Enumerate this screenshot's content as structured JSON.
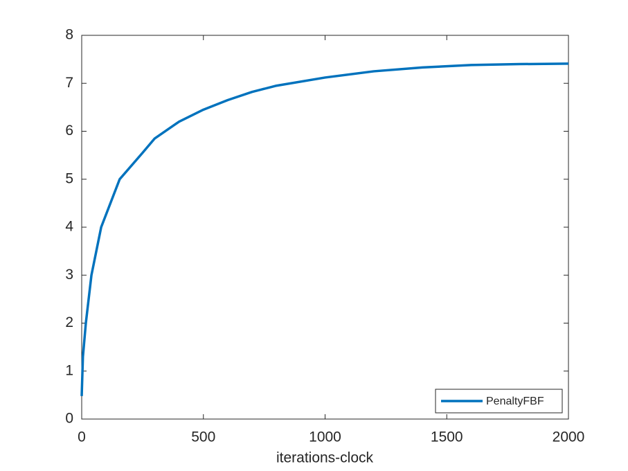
{
  "chart_data": {
    "type": "line",
    "x_label": "iterations-clock",
    "x": [
      0,
      5,
      17,
      40,
      80,
      156,
      250,
      300,
      400,
      500,
      600,
      700,
      800,
      1000,
      1200,
      1400,
      1600,
      1800,
      2000
    ],
    "series": [
      {
        "name": "PenaltyFBF",
        "color": "#0072bd",
        "values": [
          0.48,
          1.3,
          2,
          3,
          4,
          5,
          5.55,
          5.85,
          6.2,
          6.45,
          6.65,
          6.82,
          6.95,
          7.12,
          7.25,
          7.33,
          7.38,
          7.4,
          7.41
        ]
      }
    ],
    "xlim": [
      0,
      2000
    ],
    "xticks": [
      0,
      500,
      1000,
      1500,
      2000
    ],
    "ylim": [
      0,
      8
    ],
    "yticks": [
      0,
      1,
      2,
      3,
      4,
      5,
      6,
      7,
      8
    ],
    "grid": false,
    "legend": "southeast"
  }
}
